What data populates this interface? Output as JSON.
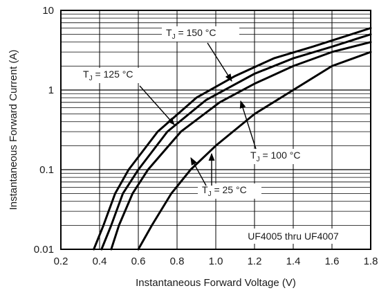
{
  "chart_data": {
    "type": "line",
    "xlabel": "Instantaneous Forward Voltage (V)",
    "ylabel": "Instantaneous Forward Current (A)",
    "x_scale": "linear",
    "y_scale": "log",
    "xlim": [
      0.2,
      1.8
    ],
    "ylim": [
      0.01,
      10
    ],
    "x_ticks": [
      "0.2",
      "0.4",
      "0.6",
      "0.8",
      "1.0",
      "1.2",
      "1.4",
      "1.6",
      "1.8"
    ],
    "y_ticks": [
      "0.01",
      "0.1",
      "1",
      "10"
    ],
    "grid": true,
    "legend": "none",
    "annotation": "UF4005 thru UF4007",
    "series": [
      {
        "name": "T_J = 150 °C",
        "label_main": "T",
        "label_sub": "J",
        "label_rest": " = 150 °C",
        "points": [
          [
            0.37,
            0.01
          ],
          [
            0.42,
            0.02
          ],
          [
            0.48,
            0.05
          ],
          [
            0.55,
            0.1
          ],
          [
            0.7,
            0.3
          ],
          [
            0.9,
            0.8
          ],
          [
            1.1,
            1.5
          ],
          [
            1.3,
            2.5
          ],
          [
            1.5,
            3.5
          ],
          [
            1.7,
            5.0
          ],
          [
            1.8,
            6.0
          ]
        ]
      },
      {
        "name": "T_J = 125 °C",
        "label_main": "T",
        "label_sub": "J",
        "label_rest": " = 125 °C",
        "points": [
          [
            0.41,
            0.01
          ],
          [
            0.46,
            0.02
          ],
          [
            0.52,
            0.05
          ],
          [
            0.6,
            0.1
          ],
          [
            0.75,
            0.3
          ],
          [
            0.95,
            0.75
          ],
          [
            1.2,
            1.6
          ],
          [
            1.4,
            2.5
          ],
          [
            1.6,
            3.5
          ],
          [
            1.8,
            5.0
          ]
        ]
      },
      {
        "name": "T_J = 100 °C",
        "label_main": "T",
        "label_sub": "J",
        "label_rest": " = 100 °C",
        "points": [
          [
            0.46,
            0.01
          ],
          [
            0.5,
            0.02
          ],
          [
            0.57,
            0.05
          ],
          [
            0.65,
            0.1
          ],
          [
            0.82,
            0.3
          ],
          [
            1.02,
            0.7
          ],
          [
            1.2,
            1.2
          ],
          [
            1.4,
            2.0
          ],
          [
            1.6,
            3.0
          ],
          [
            1.8,
            4.0
          ]
        ]
      },
      {
        "name": "T_J = 25 °C",
        "label_main": "T",
        "label_sub": "J",
        "label_rest": " = 25 °C",
        "points": [
          [
            0.6,
            0.01
          ],
          [
            0.67,
            0.02
          ],
          [
            0.77,
            0.05
          ],
          [
            0.87,
            0.1
          ],
          [
            1.0,
            0.2
          ],
          [
            1.2,
            0.5
          ],
          [
            1.4,
            1.0
          ],
          [
            1.6,
            2.0
          ],
          [
            1.8,
            3.0
          ]
        ]
      }
    ]
  }
}
